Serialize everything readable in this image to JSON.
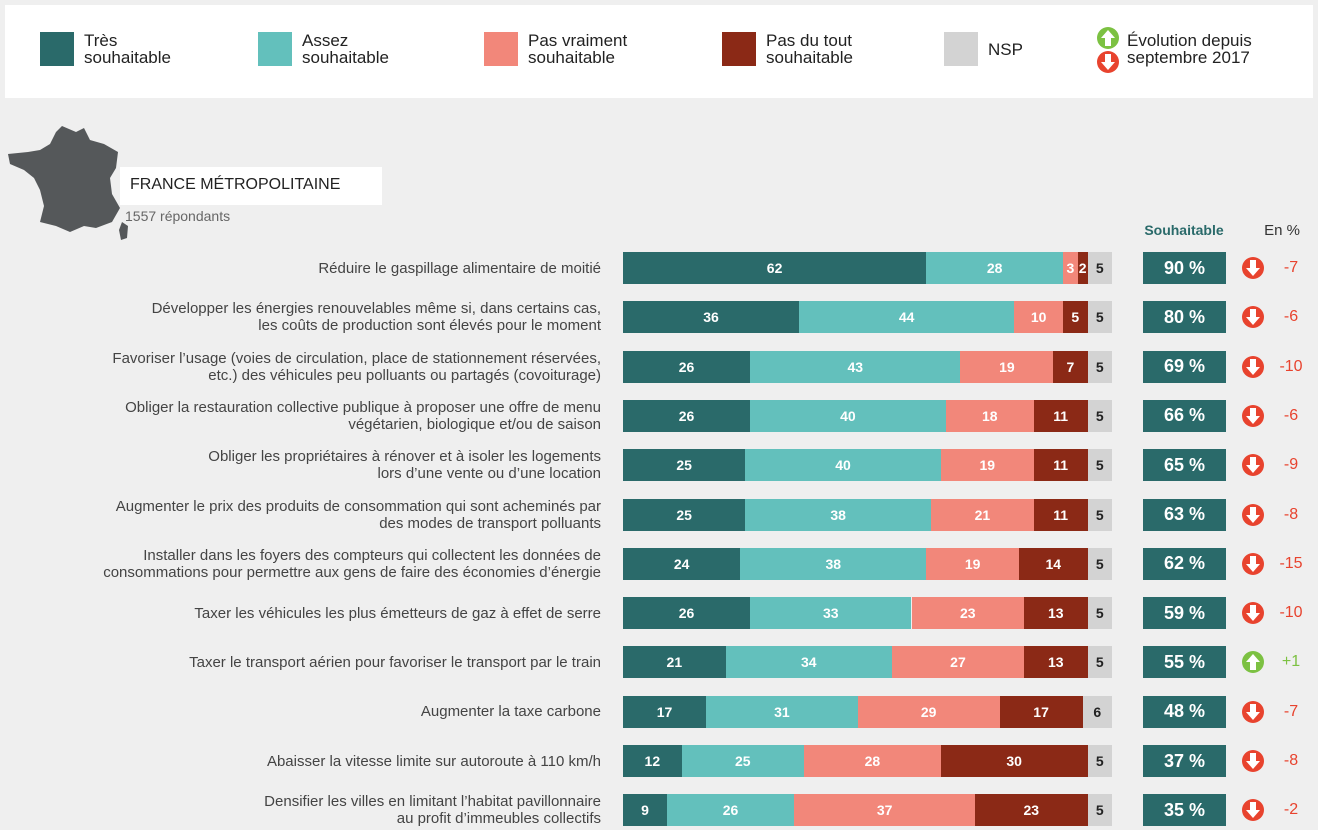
{
  "chart_data": {
    "type": "bar",
    "orientation": "horizontal",
    "stacked": true,
    "title": "FRANCE MÉTROPOLITAINE",
    "subtitle": "1557 répondants",
    "xlim": [
      0,
      100
    ],
    "categories": [
      "Réduire le gaspillage alimentaire de moitié",
      "Développer les énergies renouvelables même si, dans certains cas,\nles coûts de production sont élevés pour le moment",
      "Favoriser l’usage (voies de circulation, place de stationnement réservées,\netc.) des véhicules peu polluants ou partagés (covoiturage)",
      "Obliger la restauration collective publique à proposer une offre de menu\nvégétarien, biologique et/ou de saison",
      "Obliger les propriétaires à rénover et à isoler les logements\nlors d’une vente ou d’une location",
      "Augmenter le prix des produits de consommation qui sont acheminés par\ndes modes de transport polluants",
      "Installer dans les foyers des compteurs qui collectent les données de\nconsommations pour permettre aux gens de faire des économies d’énergie",
      "Taxer les véhicules les plus émetteurs de gaz à effet de serre",
      "Taxer le transport aérien pour favoriser le transport par le train",
      "Augmenter la taxe carbone",
      "Abaisser la vitesse limite sur autoroute à 110 km/h",
      "Densifier les villes en limitant l’habitat pavillonnaire\nau profit d’immeubles collectifs"
    ],
    "series": [
      {
        "name": "Très\nsouhaitable",
        "color": "#2a6a6a",
        "values": [
          62,
          36,
          26,
          26,
          25,
          25,
          24,
          26,
          21,
          17,
          12,
          9
        ]
      },
      {
        "name": "Assez\nsouhaitable",
        "color": "#63c0bc",
        "values": [
          28,
          44,
          43,
          40,
          40,
          38,
          38,
          33,
          34,
          31,
          25,
          26
        ]
      },
      {
        "name": "Pas vraiment\nsouhaitable",
        "color": "#f2877a",
        "values": [
          3,
          10,
          19,
          18,
          19,
          21,
          19,
          23,
          27,
          29,
          28,
          37
        ]
      },
      {
        "name": "Pas du tout\nsouhaitable",
        "color": "#8b2916",
        "values": [
          2,
          5,
          7,
          11,
          11,
          11,
          14,
          13,
          13,
          17,
          30,
          23
        ]
      },
      {
        "name": "NSP",
        "color": "#d3d3d3",
        "values": [
          5,
          5,
          5,
          5,
          5,
          5,
          5,
          5,
          5,
          6,
          5,
          5
        ]
      }
    ],
    "summary": {
      "name": "Souhaitable",
      "color": "#2a6a6a",
      "values": [
        90,
        80,
        69,
        66,
        65,
        63,
        62,
        59,
        55,
        48,
        37,
        35
      ],
      "value_labels": [
        "90 %",
        "80 %",
        "69 %",
        "66 %",
        "65 %",
        "63 %",
        "62 %",
        "59 %",
        "55 %",
        "48 %",
        "37 %",
        "35 %"
      ]
    },
    "evolution": {
      "name": "Évolution depuis\nseptembre 2017",
      "header": "En %",
      "up_color": "#7cc142",
      "down_color": "#e8432e",
      "values": [
        -7,
        -6,
        -10,
        -6,
        -9,
        -8,
        -15,
        -10,
        1,
        -7,
        -8,
        -2
      ],
      "value_labels": [
        "-7",
        "-6",
        "-10",
        "-6",
        "-9",
        "-8",
        "-15",
        "-10",
        "+1",
        "-7",
        "-8",
        "-2"
      ]
    }
  }
}
